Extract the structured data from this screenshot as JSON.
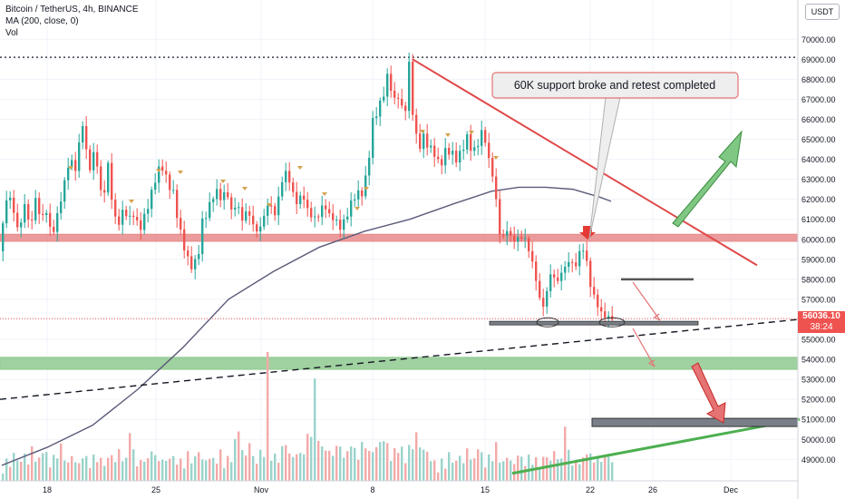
{
  "legend": {
    "symbol_line": "Bitcoin / TetherUS, 4h, BINANCE",
    "ma_line": "MA (200, close, 0)",
    "vol_line": "Vol"
  },
  "currency": "USDT",
  "current_price": {
    "value": "56036.10",
    "countdown": "38:24"
  },
  "annotation": {
    "text": "60K support broke and retest completed"
  },
  "colors": {
    "up": "#26a69a",
    "down": "#ef5350",
    "ma": "#5b5b7a",
    "resistance_zone": "#e88a8a",
    "support_zone": "#8fc98f",
    "trendline_red": "#e04848",
    "trendline_green": "#4caf50",
    "grid": "#f0f3fa"
  },
  "chart_data": {
    "type": "candlestick",
    "symbol": "Bitcoin / TetherUS",
    "timeframe": "4h",
    "exchange": "BINANCE",
    "x_tick_labels": [
      "18",
      "25",
      "Nov",
      "8",
      "15",
      "22",
      "26",
      "Dec"
    ],
    "y_tick_labels": [
      "49000.00",
      "50000.00",
      "51000.00",
      "52000.00",
      "53000.00",
      "54000.00",
      "55000.00",
      "56000.00",
      "57000.00",
      "58000.00",
      "59000.00",
      "60000.00",
      "61000.00",
      "62000.00",
      "63000.00",
      "64000.00",
      "65000.00",
      "66000.00",
      "67000.00",
      "68000.00",
      "69000.00",
      "70000.00"
    ],
    "ylim": [
      48300,
      70800
    ],
    "current_price": 56036.1,
    "price_path": [
      [
        0,
        59400
      ],
      [
        6,
        60800
      ],
      [
        12,
        62500
      ],
      [
        18,
        61300
      ],
      [
        24,
        60300
      ],
      [
        30,
        61800
      ],
      [
        36,
        60500
      ],
      [
        42,
        62000
      ],
      [
        48,
        61000
      ],
      [
        54,
        61400
      ],
      [
        60,
        60100
      ],
      [
        66,
        61200
      ],
      [
        72,
        62400
      ],
      [
        78,
        63700
      ],
      [
        84,
        63900
      ],
      [
        88,
        63200
      ],
      [
        92,
        66200
      ],
      [
        96,
        65400
      ],
      [
        100,
        63300
      ],
      [
        106,
        64200
      ],
      [
        112,
        63600
      ],
      [
        116,
        61000
      ],
      [
        120,
        64000
      ],
      [
        124,
        63300
      ],
      [
        128,
        61000
      ],
      [
        134,
        60900
      ],
      [
        140,
        61500
      ],
      [
        146,
        61000
      ],
      [
        150,
        61300
      ],
      [
        156,
        60500
      ],
      [
        160,
        60800
      ],
      [
        166,
        61700
      ],
      [
        172,
        62600
      ],
      [
        176,
        63400
      ],
      [
        182,
        63600
      ],
      [
        188,
        62800
      ],
      [
        194,
        62300
      ],
      [
        200,
        60700
      ],
      [
        206,
        59600
      ],
      [
        212,
        58700
      ],
      [
        216,
        58600
      ],
      [
        222,
        59400
      ],
      [
        226,
        60900
      ],
      [
        230,
        61200
      ],
      [
        236,
        62000
      ],
      [
        242,
        62400
      ],
      [
        248,
        61900
      ],
      [
        252,
        62600
      ],
      [
        258,
        61400
      ],
      [
        264,
        61800
      ],
      [
        270,
        61000
      ],
      [
        276,
        61500
      ],
      [
        282,
        60700
      ],
      [
        288,
        60300
      ],
      [
        294,
        61200
      ],
      [
        300,
        61900
      ],
      [
        306,
        61200
      ],
      [
        312,
        62600
      ],
      [
        318,
        63400
      ],
      [
        324,
        62600
      ],
      [
        330,
        61800
      ],
      [
        336,
        62300
      ],
      [
        342,
        61500
      ],
      [
        348,
        61000
      ],
      [
        354,
        61200
      ],
      [
        360,
        61800
      ],
      [
        366,
        61200
      ],
      [
        372,
        61000
      ],
      [
        378,
        60600
      ],
      [
        384,
        61000
      ],
      [
        390,
        61800
      ],
      [
        396,
        62300
      ],
      [
        402,
        62300
      ],
      [
        408,
        63400
      ],
      [
        414,
        65900
      ],
      [
        420,
        66500
      ],
      [
        426,
        67300
      ],
      [
        430,
        68100
      ],
      [
        434,
        67600
      ],
      [
        438,
        66900
      ],
      [
        442,
        67200
      ],
      [
        446,
        66500
      ],
      [
        450,
        66600
      ],
      [
        454,
        68700
      ],
      [
        458,
        66400
      ],
      [
        462,
        65100
      ],
      [
        466,
        64700
      ],
      [
        470,
        65100
      ],
      [
        476,
        64600
      ],
      [
        482,
        64300
      ],
      [
        488,
        63600
      ],
      [
        494,
        64400
      ],
      [
        500,
        64400
      ],
      [
        506,
        64000
      ],
      [
        512,
        64400
      ],
      [
        518,
        65100
      ],
      [
        524,
        64300
      ],
      [
        530,
        64800
      ],
      [
        536,
        65600
      ],
      [
        540,
        64300
      ],
      [
        544,
        63600
      ],
      [
        548,
        62900
      ],
      [
        552,
        60900
      ],
      [
        556,
        59800
      ],
      [
        560,
        60400
      ],
      [
        564,
        60600
      ],
      [
        568,
        59600
      ],
      [
        572,
        60300
      ],
      [
        576,
        59800
      ],
      [
        580,
        60400
      ],
      [
        584,
        59600
      ],
      [
        588,
        59300
      ],
      [
        592,
        58400
      ],
      [
        596,
        57500
      ],
      [
        600,
        56600
      ],
      [
        604,
        56700
      ],
      [
        608,
        58100
      ],
      [
        612,
        58400
      ],
      [
        616,
        57800
      ],
      [
        620,
        58000
      ],
      [
        624,
        58700
      ],
      [
        628,
        58500
      ],
      [
        632,
        59300
      ],
      [
        636,
        58300
      ],
      [
        640,
        59100
      ],
      [
        644,
        59600
      ],
      [
        648,
        59400
      ],
      [
        652,
        58300
      ],
      [
        656,
        57100
      ],
      [
        660,
        57200
      ],
      [
        664,
        56200
      ],
      [
        668,
        56400
      ],
      [
        672,
        56000
      ],
      [
        676,
        56100
      ]
    ],
    "volume_relative": [
      0.1,
      0.17,
      0.16,
      0.22,
      0.2,
      0.16,
      0.24,
      0.15,
      0.28,
      0.2,
      0.18,
      0.34,
      0.22,
      0.17,
      0.2,
      0.24,
      0.3,
      0.19,
      0.16,
      0.21,
      0.18,
      0.14,
      0.25,
      0.19,
      0.17,
      0.2,
      0.22,
      0.18,
      0.15,
      0.19,
      0.23,
      0.17,
      0.26,
      0.2,
      0.18,
      0.57,
      0.24,
      0.19,
      0.16,
      0.21,
      0.18,
      0.28,
      0.22,
      0.17,
      0.2,
      0.16,
      0.24,
      0.19,
      0.21,
      0.17,
      0.15,
      0.23,
      0.18,
      0.2,
      0.26,
      0.19,
      0.17,
      0.22,
      0.18,
      0.2,
      0.24,
      0.17,
      0.19,
      0.21,
      0.33,
      0.48,
      0.26,
      0.22,
      0.35,
      0.2,
      0.18,
      0.24,
      0.3,
      0.98,
      0.25,
      0.21,
      0.19,
      0.28,
      0.33,
      0.24,
      0.2,
      0.26,
      0.22,
      0.3,
      0.36,
      0.6,
      0.78,
      0.46,
      0.27,
      0.3,
      0.25,
      0.22,
      0.32,
      0.28,
      0.24,
      0.23,
      0.42,
      0.25,
      0.27,
      0.3,
      0.35,
      0.24,
      0.27,
      0.29,
      0.33,
      0.38,
      0.3,
      0.22,
      0.25,
      0.37,
      0.26,
      0.21,
      0.28,
      0.32,
      0.4,
      0.3,
      0.28,
      0.24,
      0.2,
      0.16
    ],
    "ma200": [
      [
        0,
        48700
      ],
      [
        50,
        49600
      ],
      [
        100,
        50700
      ],
      [
        150,
        52500
      ],
      [
        200,
        54600
      ],
      [
        250,
        57000
      ],
      [
        300,
        58400
      ],
      [
        350,
        59600
      ],
      [
        400,
        60400
      ],
      [
        450,
        61000
      ],
      [
        500,
        61800
      ],
      [
        540,
        62400
      ],
      [
        570,
        62600
      ],
      [
        600,
        62600
      ],
      [
        630,
        62500
      ],
      [
        660,
        62100
      ],
      [
        672,
        61900
      ]
    ],
    "horizontal_zones": [
      {
        "name": "resistance",
        "from": 59900,
        "to": 60250
      },
      {
        "name": "support",
        "from": 53500,
        "to": 54100
      }
    ],
    "dotted_levels": [
      69100
    ],
    "trendlines": [
      {
        "name": "descending-resistance",
        "points": [
          [
            455,
            69000
          ],
          [
            835,
            58700
          ]
        ]
      },
      {
        "name": "dashed-support",
        "points": [
          [
            0,
            52000
          ],
          [
            882,
            56000
          ]
        ]
      },
      {
        "name": "ascending-green",
        "points": [
          [
            565,
            48300
          ],
          [
            882,
            51000
          ]
        ]
      }
    ],
    "annotation_price": 60600
  }
}
